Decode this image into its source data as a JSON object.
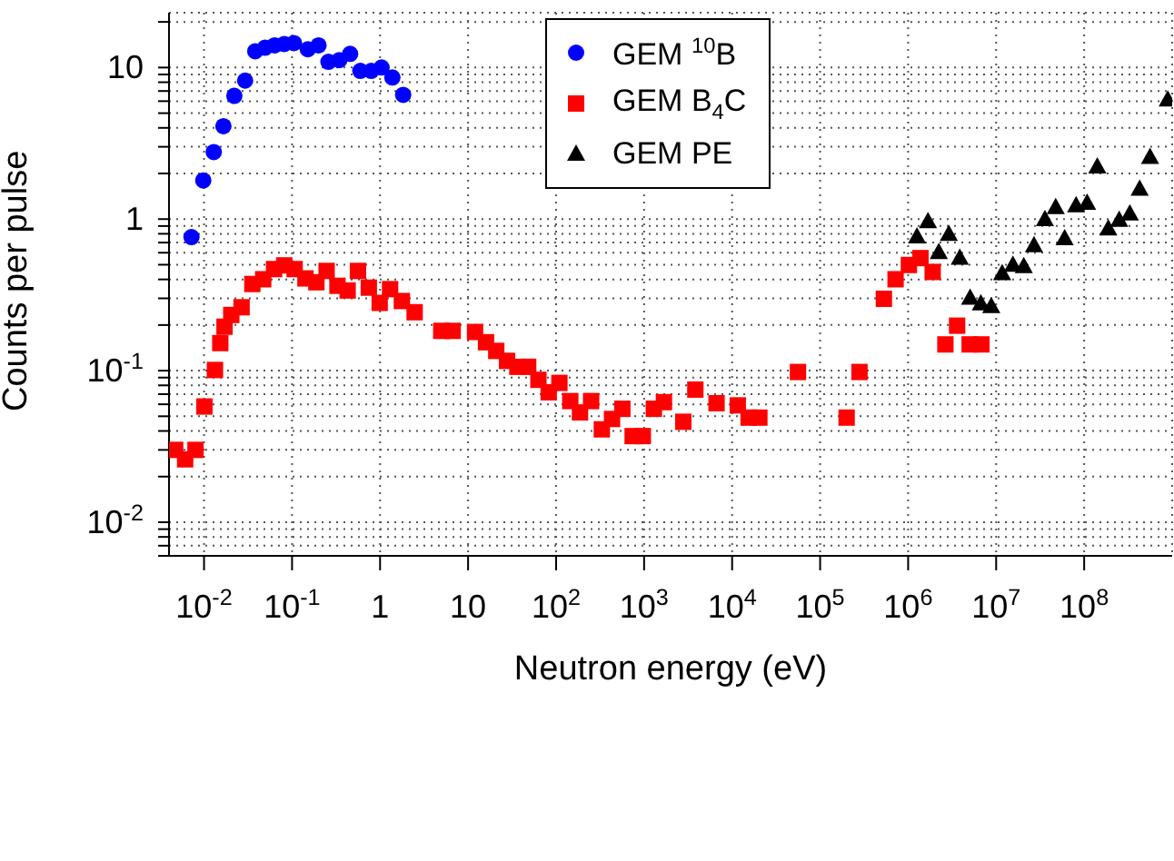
{
  "chart_data": {
    "type": "scatter",
    "xlabel": "Neutron energy (eV)",
    "ylabel": "Counts per pulse",
    "log": "xy",
    "grid": true,
    "legend": "top",
    "xlim": [
      0.004,
      1000000000
    ],
    "ylim": [
      0.006,
      23
    ],
    "xticks": [
      {
        "value": 0.01,
        "label": "10$^{-2}$"
      },
      {
        "value": 0.1,
        "label": "10$^{-1}$"
      },
      1,
      10,
      {
        "value": 100,
        "label": "10$^{2}$"
      },
      {
        "value": 1000,
        "label": "10$^{3}$"
      },
      {
        "value": 10000,
        "label": "10$^{4}$"
      },
      {
        "value": 100000,
        "label": "10$^{5}$"
      },
      {
        "value": 1000000,
        "label": "10$^{6}$"
      },
      {
        "value": 10000000,
        "label": "10$^{7}$"
      },
      {
        "value": 100000000,
        "label": "10$^{8}$"
      }
    ],
    "yticks": [
      {
        "value": 0.006,
        "label": null
      },
      {
        "value": 0.007,
        "label": null
      },
      {
        "value": 0.008,
        "label": null
      },
      {
        "value": 0.009,
        "label": null
      },
      {
        "value": 0.01,
        "label": "10$^{-2}$"
      },
      {
        "value": 0.02,
        "label": null
      },
      {
        "value": 0.03,
        "label": null
      },
      {
        "value": 0.04,
        "label": null
      },
      {
        "value": 0.05,
        "label": null
      },
      {
        "value": 0.06,
        "label": null
      },
      {
        "value": 0.07,
        "label": null
      },
      {
        "value": 0.08,
        "label": null
      },
      {
        "value": 0.09,
        "label": null
      },
      {
        "value": 0.1,
        "label": "10$^{-1}$"
      },
      {
        "value": 0.2,
        "label": null
      },
      {
        "value": 0.3,
        "label": null
      },
      {
        "value": 0.4,
        "label": null
      },
      {
        "value": 0.5,
        "label": null
      },
      {
        "value": 0.6,
        "label": null
      },
      {
        "value": 0.7,
        "label": null
      },
      {
        "value": 0.8,
        "label": null
      },
      {
        "value": 0.9,
        "label": null
      },
      1,
      {
        "value": 2,
        "label": null
      },
      {
        "value": 3,
        "label": null
      },
      {
        "value": 4,
        "label": null
      },
      {
        "value": 5,
        "label": null
      },
      {
        "value": 6,
        "label": null
      },
      {
        "value": 7,
        "label": null
      },
      {
        "value": 8,
        "label": null
      },
      {
        "value": 9,
        "label": null
      },
      10,
      {
        "value": 20,
        "label": null
      }
    ],
    "series": [
      {
        "name": "GEM $^{10}$B",
        "color": "#0000ff",
        "marker": "circle",
        "x": [
          0.0072,
          0.0098,
          0.0129,
          0.0166,
          0.0221,
          0.0293,
          0.0382,
          0.0493,
          0.0634,
          0.0816,
          0.105,
          0.151,
          0.2,
          0.259,
          0.344,
          0.457,
          0.597,
          0.793,
          1.04,
          1.38,
          1.83
        ],
        "values": [
          0.76,
          1.8,
          2.77,
          4.1,
          6.5,
          8.2,
          12.8,
          13.5,
          14.0,
          14.3,
          14.5,
          13.2,
          14.0,
          10.9,
          11.2,
          12.3,
          9.5,
          9.5,
          10.0,
          8.6,
          6.6
        ]
      },
      {
        "name": "GEM B$_{4}$C",
        "color": "#ff0000",
        "marker": "square",
        "x": [
          0.0047,
          0.0061,
          0.008,
          0.0101,
          0.0133,
          0.0153,
          0.0171,
          0.0204,
          0.0267,
          0.0354,
          0.047,
          0.0625,
          0.0816,
          0.107,
          0.142,
          0.189,
          0.247,
          0.328,
          0.428,
          0.561,
          0.745,
          0.99,
          1.3,
          1.77,
          2.47,
          4.96,
          6.68,
          12,
          16,
          20.9,
          27.7,
          36.3,
          48.2,
          63,
          82.4,
          109,
          145,
          187,
          250,
          331,
          432,
          566,
          741,
          967,
          1290,
          1680,
          2790,
          3820,
          6650,
          11600,
          15400,
          20400,
          56000,
          200000,
          280000,
          530000,
          720000,
          1020000,
          1380000,
          1900000,
          2650000,
          3600000,
          5000000,
          6800000
        ],
        "values": [
          0.03,
          0.026,
          0.03,
          0.058,
          0.101,
          0.152,
          0.195,
          0.233,
          0.262,
          0.373,
          0.401,
          0.468,
          0.495,
          0.468,
          0.406,
          0.383,
          0.455,
          0.363,
          0.338,
          0.455,
          0.353,
          0.28,
          0.345,
          0.288,
          0.243,
          0.183,
          0.183,
          0.18,
          0.154,
          0.135,
          0.116,
          0.106,
          0.106,
          0.087,
          0.072,
          0.083,
          0.063,
          0.053,
          0.063,
          0.041,
          0.048,
          0.056,
          0.037,
          0.037,
          0.056,
          0.062,
          0.046,
          0.075,
          0.061,
          0.059,
          0.049,
          0.049,
          0.098,
          0.049,
          0.098,
          0.298,
          0.401,
          0.498,
          0.553,
          0.448,
          0.149,
          0.198,
          0.149,
          0.149
        ]
      },
      {
        "name": "GEM PE",
        "color": "#000000",
        "marker": "triangle",
        "x": [
          1260000,
          1680000,
          2230000,
          2900000,
          3860000,
          5060000,
          6700000,
          8800000,
          11700000,
          15500000,
          20600000,
          26900000,
          35800000,
          47500000,
          60000000,
          81000000,
          108000000,
          141000000,
          188000000,
          250000000,
          330000000,
          427000000,
          560000000,
          890000000
        ],
        "values": [
          0.76,
          0.96,
          0.6,
          0.79,
          0.55,
          0.3,
          0.275,
          0.264,
          0.436,
          0.495,
          0.484,
          0.665,
          0.99,
          1.19,
          0.74,
          1.22,
          1.27,
          2.2,
          0.86,
          0.98,
          1.08,
          1.57,
          2.55,
          6.1
        ]
      }
    ]
  }
}
